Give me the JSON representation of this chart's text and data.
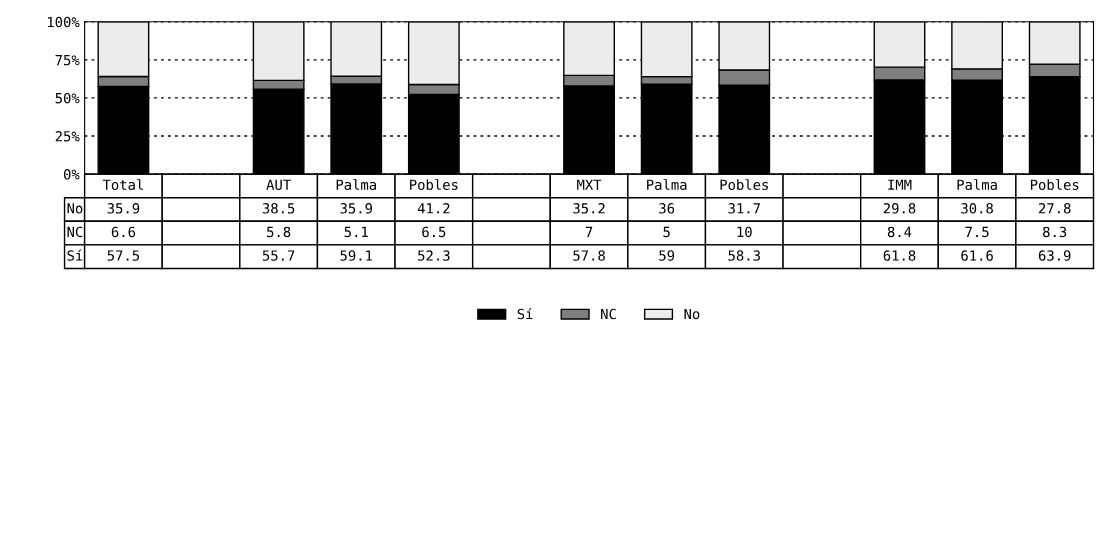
{
  "chart_data": {
    "type": "bar",
    "stacked": true,
    "categories": [
      "Total",
      null,
      "AUT",
      "Palma",
      "Pobles",
      null,
      "MXT",
      "Palma",
      "Pobles",
      null,
      "IMM",
      "Palma",
      "Pobles"
    ],
    "series": [
      {
        "name": "Sí",
        "color": "#000000",
        "values": [
          57.5,
          null,
          55.7,
          59.1,
          52.3,
          null,
          57.8,
          59,
          58.3,
          null,
          61.8,
          61.6,
          63.9
        ]
      },
      {
        "name": "NC",
        "color": "#7f7f7f",
        "values": [
          6.6,
          null,
          5.8,
          5.1,
          6.5,
          null,
          7,
          5,
          10,
          null,
          8.4,
          7.5,
          8.3
        ]
      },
      {
        "name": "No",
        "color": "#ececec",
        "values": [
          35.9,
          null,
          38.5,
          35.9,
          41.2,
          null,
          35.2,
          36,
          31.7,
          null,
          29.8,
          30.8,
          27.8
        ]
      }
    ],
    "ylim": [
      0,
      100
    ],
    "yticks": [
      {
        "value": 0,
        "label": "0%"
      },
      {
        "value": 25,
        "label": "25%"
      },
      {
        "value": 50,
        "label": "50%"
      },
      {
        "value": 75,
        "label": "75%"
      },
      {
        "value": 100,
        "label": "100%"
      }
    ],
    "grid": "y",
    "data_labels": true,
    "legend": "bottom"
  }
}
